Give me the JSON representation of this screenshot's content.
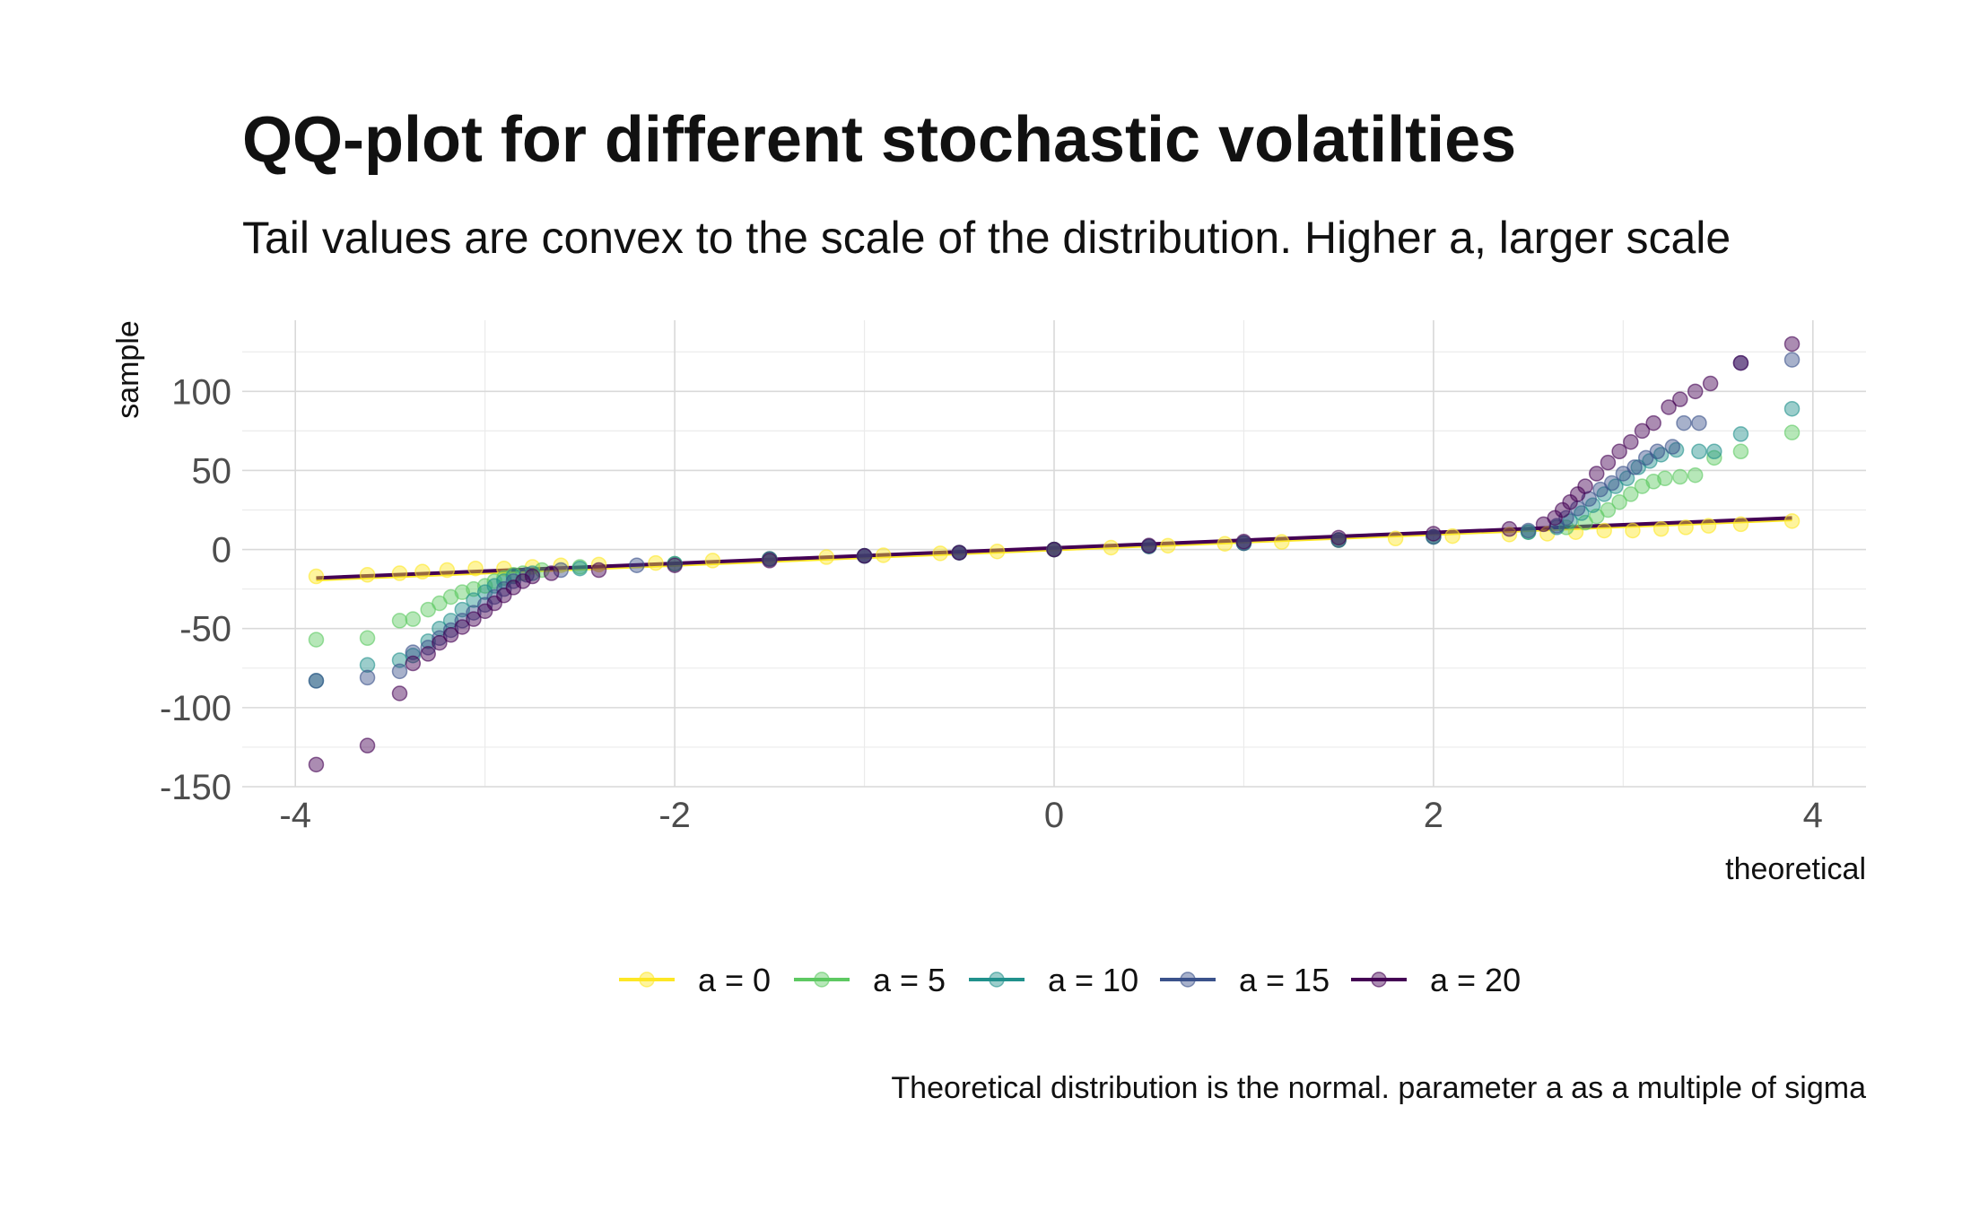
{
  "chart_data": {
    "type": "scatter",
    "title": "QQ-plot for different stochastic volatilties",
    "subtitle": "Tail values are convex to the scale of the distribution. Higher a, larger scale",
    "caption": "Theoretical distribution is the normal. parameter a as a multiple of sigma",
    "xlabel": "theoretical",
    "ylabel": "sample",
    "xlim": [
      -4.28,
      4.28
    ],
    "ylim": [
      -150,
      145
    ],
    "x_ticks": [
      -4,
      -2,
      0,
      2,
      4
    ],
    "x_tick_labels": [
      "-4",
      "-2",
      "0",
      "2",
      "4"
    ],
    "y_ticks": [
      -150,
      -100,
      -50,
      0,
      50,
      100
    ],
    "y_tick_labels": [
      "-150",
      "-100",
      "-50",
      "0",
      "50",
      "100"
    ],
    "grid": true,
    "legend_position": "bottom",
    "series": [
      {
        "name": "a = 0",
        "color": "#fde725",
        "points": [
          [
            -3.89,
            -17
          ],
          [
            -3.62,
            -16
          ],
          [
            -3.45,
            -15
          ],
          [
            -3.33,
            -14
          ],
          [
            -3.2,
            -13
          ],
          [
            -3.05,
            -12
          ],
          [
            -2.9,
            -12
          ],
          [
            -2.75,
            -11
          ],
          [
            -2.6,
            -10
          ],
          [
            -2.4,
            -9.5
          ],
          [
            -2.1,
            -8.5
          ],
          [
            -1.8,
            -7
          ],
          [
            -1.5,
            -6
          ],
          [
            -1.2,
            -4.8
          ],
          [
            -0.9,
            -3.6
          ],
          [
            -0.6,
            -2.4
          ],
          [
            -0.3,
            -1.2
          ],
          [
            0,
            0
          ],
          [
            0.3,
            1.2
          ],
          [
            0.6,
            2.4
          ],
          [
            0.9,
            3.6
          ],
          [
            1.2,
            4.8
          ],
          [
            1.5,
            6
          ],
          [
            1.8,
            7
          ],
          [
            2.1,
            8.5
          ],
          [
            2.4,
            9.5
          ],
          [
            2.6,
            10
          ],
          [
            2.75,
            11
          ],
          [
            2.9,
            12
          ],
          [
            3.05,
            12
          ],
          [
            3.2,
            13
          ],
          [
            3.33,
            14
          ],
          [
            3.45,
            15
          ],
          [
            3.62,
            16
          ],
          [
            3.89,
            18
          ]
        ],
        "reference_line": [
          [
            -3.89,
            -19
          ],
          [
            3.89,
            19
          ]
        ]
      },
      {
        "name": "a = 5",
        "color": "#5ec962",
        "points": [
          [
            -3.89,
            -57
          ],
          [
            -3.62,
            -56
          ],
          [
            -3.45,
            -45
          ],
          [
            -3.38,
            -44
          ],
          [
            -3.3,
            -38
          ],
          [
            -3.24,
            -34
          ],
          [
            -3.18,
            -30
          ],
          [
            -3.12,
            -27
          ],
          [
            -3.06,
            -25
          ],
          [
            -3.0,
            -23
          ],
          [
            -2.95,
            -20
          ],
          [
            -2.9,
            -18
          ],
          [
            -2.85,
            -16
          ],
          [
            -2.8,
            -15
          ],
          [
            -2.7,
            -13
          ],
          [
            -2.5,
            -11
          ],
          [
            -2.0,
            -9
          ],
          [
            -1.5,
            -6
          ],
          [
            -1.0,
            -4
          ],
          [
            -0.5,
            -2
          ],
          [
            0,
            0
          ],
          [
            0.5,
            2
          ],
          [
            1.0,
            4
          ],
          [
            1.5,
            6
          ],
          [
            2.0,
            8
          ],
          [
            2.5,
            11
          ],
          [
            2.7,
            14
          ],
          [
            2.8,
            17
          ],
          [
            2.86,
            21
          ],
          [
            2.92,
            25
          ],
          [
            2.98,
            30
          ],
          [
            3.04,
            35
          ],
          [
            3.1,
            40
          ],
          [
            3.16,
            43
          ],
          [
            3.22,
            45
          ],
          [
            3.3,
            46
          ],
          [
            3.38,
            47
          ],
          [
            3.48,
            58
          ],
          [
            3.62,
            62
          ],
          [
            3.89,
            74
          ]
        ]
      },
      {
        "name": "a = 10",
        "color": "#21918c",
        "points": [
          [
            -3.89,
            -83
          ],
          [
            -3.62,
            -73
          ],
          [
            -3.45,
            -70
          ],
          [
            -3.38,
            -67
          ],
          [
            -3.3,
            -58
          ],
          [
            -3.24,
            -50
          ],
          [
            -3.18,
            -45
          ],
          [
            -3.12,
            -38
          ],
          [
            -3.06,
            -32
          ],
          [
            -3.0,
            -27
          ],
          [
            -2.95,
            -23
          ],
          [
            -2.9,
            -20
          ],
          [
            -2.85,
            -17
          ],
          [
            -2.75,
            -15
          ],
          [
            -2.5,
            -12
          ],
          [
            -2.0,
            -9
          ],
          [
            -1.5,
            -6
          ],
          [
            -1.0,
            -4
          ],
          [
            -0.5,
            -2
          ],
          [
            0,
            0
          ],
          [
            0.5,
            2
          ],
          [
            1.0,
            4
          ],
          [
            1.5,
            6
          ],
          [
            2.0,
            8
          ],
          [
            2.5,
            11
          ],
          [
            2.65,
            14
          ],
          [
            2.72,
            18
          ],
          [
            2.78,
            23
          ],
          [
            2.84,
            28
          ],
          [
            2.9,
            35
          ],
          [
            2.96,
            40
          ],
          [
            3.02,
            45
          ],
          [
            3.08,
            52
          ],
          [
            3.14,
            56
          ],
          [
            3.2,
            60
          ],
          [
            3.28,
            63
          ],
          [
            3.4,
            62
          ],
          [
            3.48,
            62
          ],
          [
            3.62,
            73
          ],
          [
            3.89,
            89
          ]
        ]
      },
      {
        "name": "a = 15",
        "color": "#3b528b",
        "points": [
          [
            -3.89,
            -83
          ],
          [
            -3.62,
            -81
          ],
          [
            -3.45,
            -77
          ],
          [
            -3.38,
            -65
          ],
          [
            -3.3,
            -62
          ],
          [
            -3.24,
            -56
          ],
          [
            -3.18,
            -51
          ],
          [
            -3.12,
            -45
          ],
          [
            -3.06,
            -40
          ],
          [
            -3.0,
            -35
          ],
          [
            -2.95,
            -30
          ],
          [
            -2.9,
            -25
          ],
          [
            -2.85,
            -20
          ],
          [
            -2.78,
            -16
          ],
          [
            -2.6,
            -13
          ],
          [
            -2.2,
            -10
          ],
          [
            -1.5,
            -6
          ],
          [
            -1.0,
            -4
          ],
          [
            -0.5,
            -2
          ],
          [
            0,
            0
          ],
          [
            0.5,
            2
          ],
          [
            1.0,
            4
          ],
          [
            1.5,
            6
          ],
          [
            2.0,
            8
          ],
          [
            2.5,
            12
          ],
          [
            2.65,
            15
          ],
          [
            2.7,
            20
          ],
          [
            2.76,
            26
          ],
          [
            2.82,
            32
          ],
          [
            2.88,
            38
          ],
          [
            2.94,
            42
          ],
          [
            3.0,
            48
          ],
          [
            3.06,
            52
          ],
          [
            3.12,
            58
          ],
          [
            3.18,
            62
          ],
          [
            3.26,
            65
          ],
          [
            3.32,
            80
          ],
          [
            3.4,
            80
          ],
          [
            3.62,
            118
          ],
          [
            3.89,
            120
          ]
        ]
      },
      {
        "name": "a = 20",
        "color": "#440154",
        "points": [
          [
            -3.89,
            -136
          ],
          [
            -3.62,
            -124
          ],
          [
            -3.45,
            -91
          ],
          [
            -3.38,
            -72
          ],
          [
            -3.3,
            -66
          ],
          [
            -3.24,
            -59
          ],
          [
            -3.18,
            -54
          ],
          [
            -3.12,
            -49
          ],
          [
            -3.06,
            -44
          ],
          [
            -3.0,
            -39
          ],
          [
            -2.95,
            -34
          ],
          [
            -2.9,
            -29
          ],
          [
            -2.85,
            -24
          ],
          [
            -2.8,
            -20
          ],
          [
            -2.75,
            -17
          ],
          [
            -2.65,
            -15
          ],
          [
            -2.4,
            -13
          ],
          [
            -2.0,
            -10
          ],
          [
            -1.5,
            -7
          ],
          [
            -1.0,
            -4
          ],
          [
            -0.5,
            -2
          ],
          [
            0,
            0
          ],
          [
            0.5,
            2.5
          ],
          [
            1.0,
            5
          ],
          [
            1.5,
            7.5
          ],
          [
            2.0,
            10
          ],
          [
            2.4,
            13
          ],
          [
            2.58,
            16
          ],
          [
            2.64,
            20
          ],
          [
            2.68,
            25
          ],
          [
            2.72,
            30
          ],
          [
            2.76,
            35
          ],
          [
            2.8,
            40
          ],
          [
            2.86,
            48
          ],
          [
            2.92,
            55
          ],
          [
            2.98,
            62
          ],
          [
            3.04,
            68
          ],
          [
            3.1,
            75
          ],
          [
            3.16,
            80
          ],
          [
            3.24,
            90
          ],
          [
            3.3,
            95
          ],
          [
            3.38,
            100
          ],
          [
            3.46,
            105
          ],
          [
            3.62,
            118
          ],
          [
            3.89,
            130
          ]
        ],
        "reference_line": [
          [
            -3.89,
            -18
          ],
          [
            3.89,
            20
          ]
        ]
      }
    ]
  }
}
